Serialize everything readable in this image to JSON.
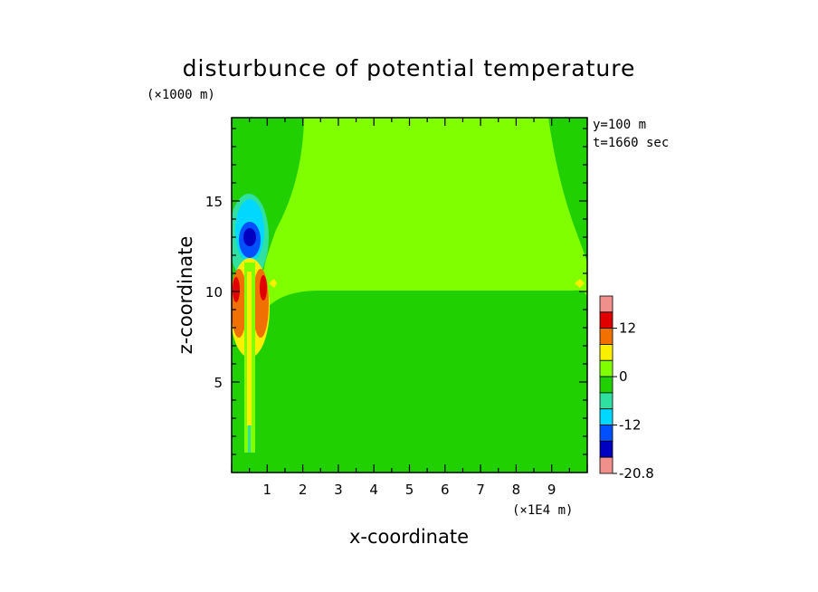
{
  "chart_data": {
    "type": "heatmap",
    "title": "disturbunce of potential temperature",
    "xlabel": "x-coordinate",
    "ylabel": "z-coordinate",
    "x_unit": "(×1E4 m)",
    "y_unit": "(×1000 m)",
    "xlim": [
      0,
      10
    ],
    "ylim": [
      0,
      19.6
    ],
    "x_ticks": [
      "1",
      "2",
      "3",
      "4",
      "5",
      "6",
      "7",
      "8",
      "9"
    ],
    "y_ticks": [
      "5",
      "10",
      "15"
    ],
    "annotations": [
      "y=100 m",
      "t=1660 sec"
    ],
    "colorbar": {
      "tick_labels": [
        "12",
        "0",
        "-12",
        "-20.8"
      ],
      "colors": [
        "#f0908c",
        "#e00000",
        "#f07000",
        "#f8f000",
        "#80ff00",
        "#20d000",
        "#30e0a0",
        "#00d8ff",
        "#0050ff",
        "#0000c0",
        "#f0908c"
      ]
    },
    "field": {
      "background_color": "#20d000",
      "upper_color": "#80ff00"
    }
  }
}
